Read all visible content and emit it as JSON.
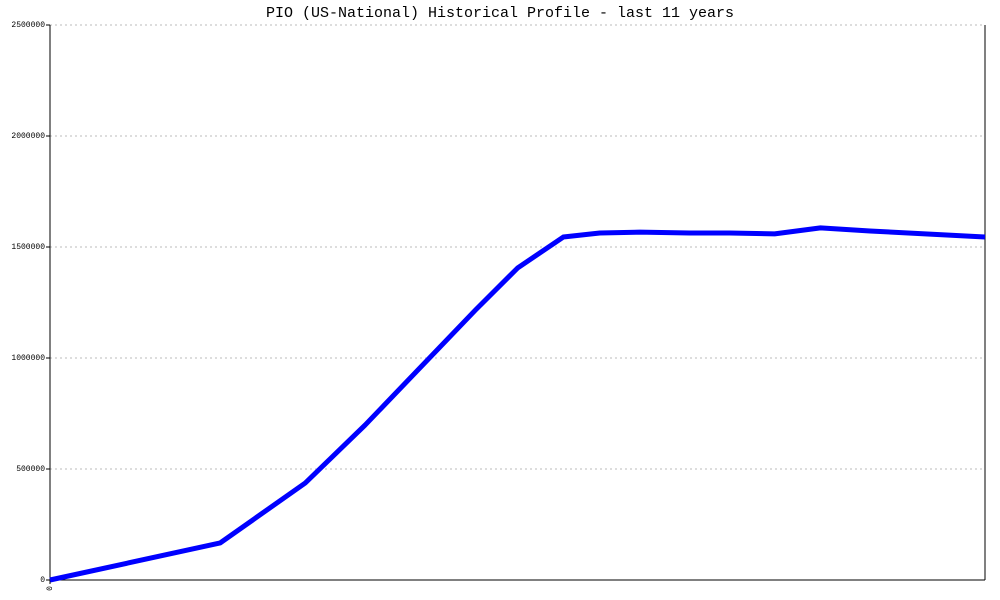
{
  "chart_data": {
    "type": "line",
    "title": "PIO (US-National) Historical Profile - last 11 years",
    "x": [
      0,
      18.2,
      27.3,
      33.7,
      45.5,
      50.0,
      54.9,
      58.8,
      63.1,
      68.4,
      72.7,
      77.5,
      82.4,
      87.7,
      100
    ],
    "series": [
      {
        "color": "#0000ff",
        "values": [
          0,
          167000,
          437000,
          698000,
          1216000,
          1405000,
          1545000,
          1563000,
          1567000,
          1563000,
          1563000,
          1559000,
          1586000,
          1572000,
          1545000
        ]
      }
    ],
    "xlim": [
      0,
      100
    ],
    "xticks": [
      0
    ],
    "ylim": [
      0,
      2500000
    ],
    "yticks": [
      0,
      500000,
      1000000,
      1500000,
      2000000,
      2500000
    ],
    "grid": true
  }
}
